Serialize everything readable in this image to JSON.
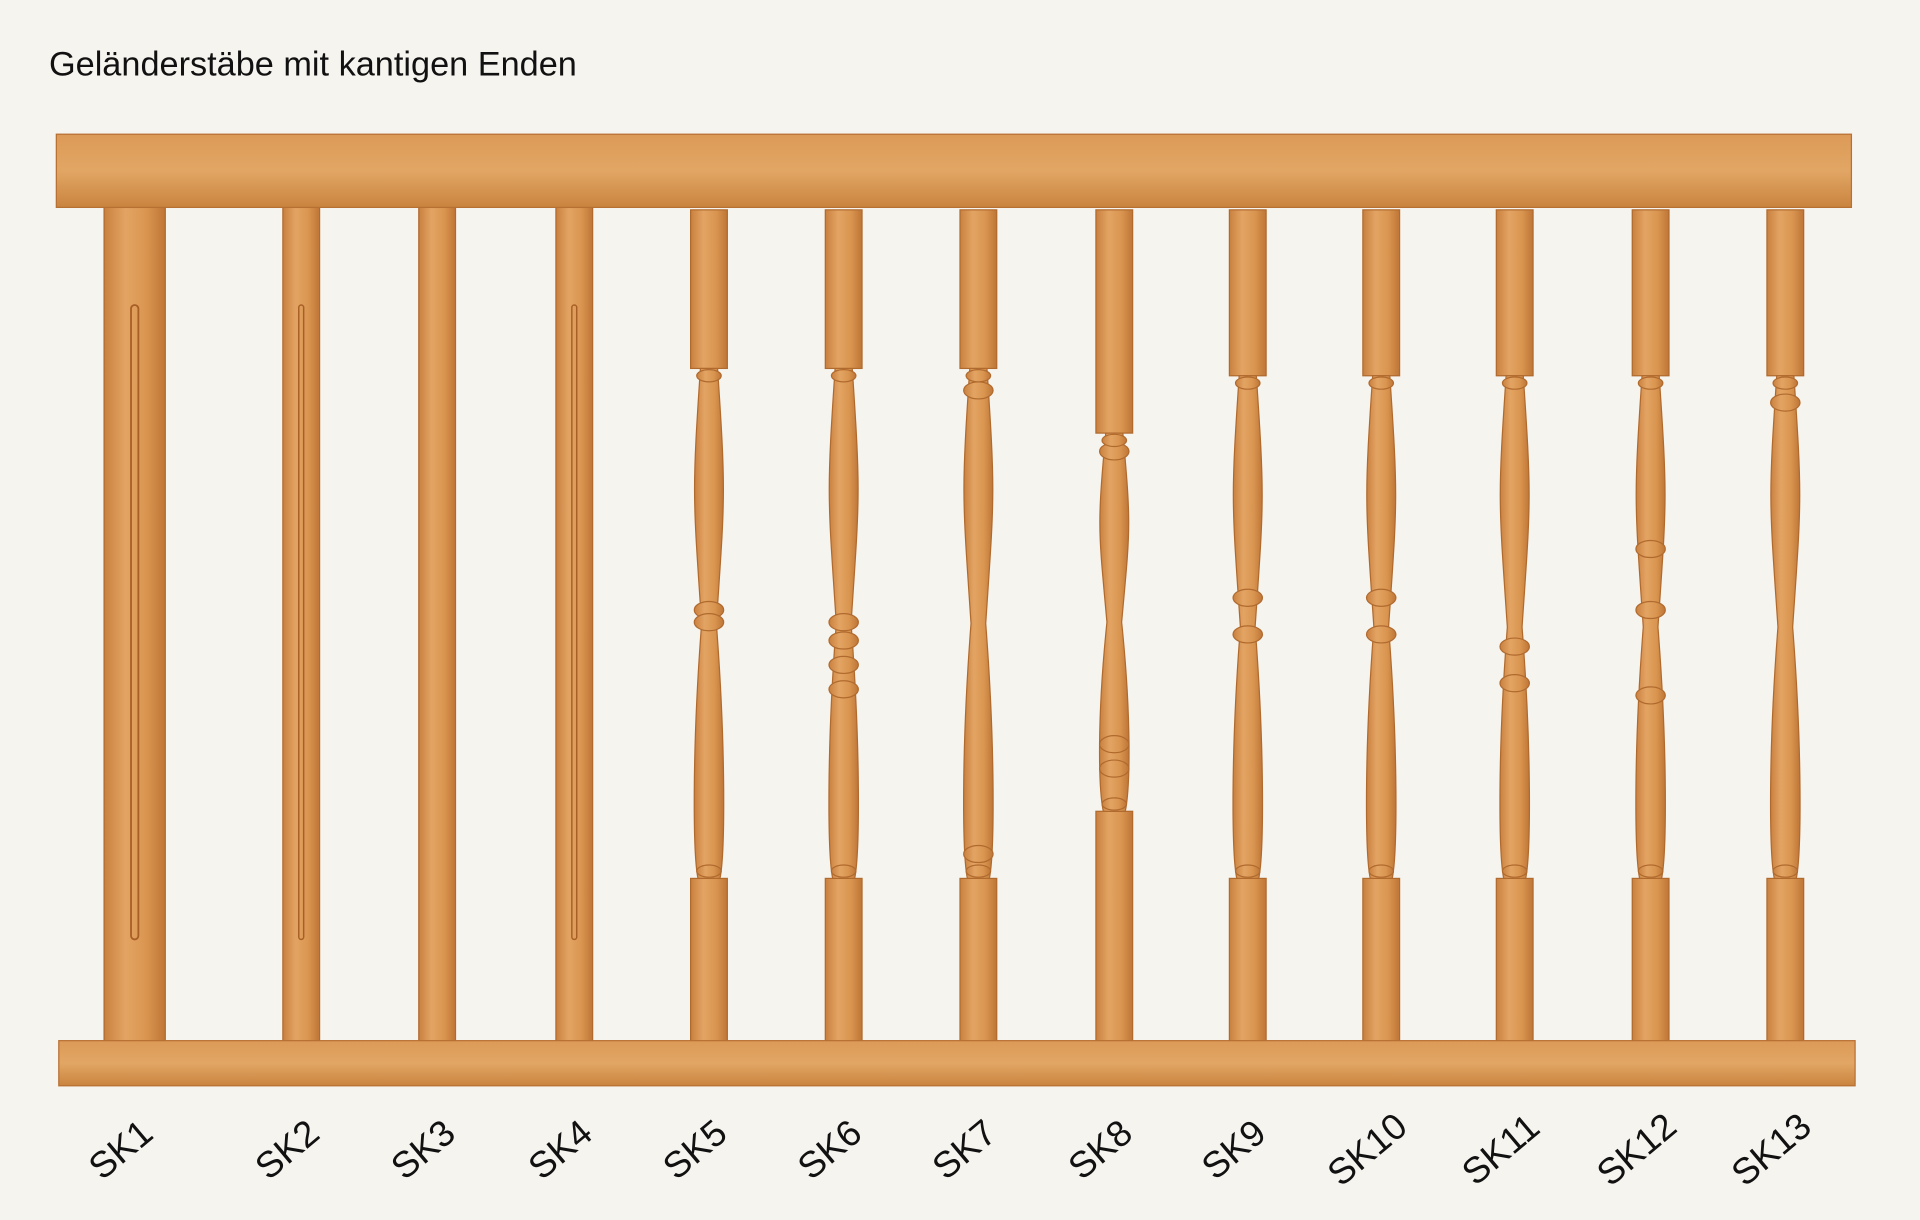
{
  "title": "Geländerstäbe mit kantigen Enden",
  "balusters": [
    "SK1",
    "SK2",
    "SK3",
    "SK4",
    "SK5",
    "SK6",
    "SK7",
    "SK8",
    "SK9",
    "SK10",
    "SK11",
    "SK12",
    "SK13"
  ]
}
